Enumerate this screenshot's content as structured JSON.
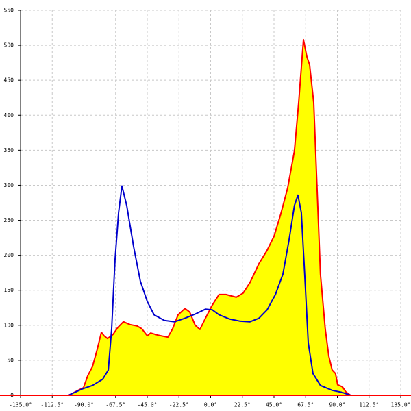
{
  "chart_data": {
    "type": "line",
    "xlim": [
      -135,
      135
    ],
    "ylim": [
      0,
      550
    ],
    "grid": true,
    "xticks": [
      {
        "value": -135,
        "label": "-135.0°"
      },
      {
        "value": -112.5,
        "label": "-112.5°"
      },
      {
        "value": -90,
        "label": "-90.0°"
      },
      {
        "value": -67.5,
        "label": "-67.5°"
      },
      {
        "value": -45,
        "label": "-45.0°"
      },
      {
        "value": -22.5,
        "label": "-22.5°"
      },
      {
        "value": 0,
        "label": "0.0°"
      },
      {
        "value": 22.5,
        "label": "22.5°"
      },
      {
        "value": 45,
        "label": "45.0°"
      },
      {
        "value": 67.5,
        "label": "67.5°"
      },
      {
        "value": 90,
        "label": "90.0°"
      },
      {
        "value": 112.5,
        "label": "112.5°"
      },
      {
        "value": 135,
        "label": "135.0°"
      }
    ],
    "yticks": [
      0,
      50,
      100,
      150,
      200,
      250,
      300,
      350,
      400,
      450,
      500,
      550
    ],
    "series": [
      {
        "color": "#ff0000",
        "fill_color": "#ffff00",
        "x": [
          -101,
          -96.1,
          -90.3,
          -87.3,
          -83.9,
          -80.5,
          -77.6,
          -75.7,
          -73.2,
          -69.3,
          -65.9,
          -62,
          -57.2,
          -52.3,
          -48.9,
          -45,
          -42.6,
          -37.7,
          -30.4,
          -27,
          -23.1,
          -18.3,
          -14.9,
          -11,
          -7.6,
          -3.7,
          1.2,
          6,
          10.9,
          18.2,
          23.1,
          27.9,
          34.3,
          40.1,
          45,
          49.8,
          54.7,
          59.5,
          62.5,
          65.9,
          68.3,
          70.3,
          73.2,
          75.1,
          78,
          81.4,
          83.9,
          86.3,
          88.7,
          90.2,
          93.6,
          96,
          99.4
        ],
        "values": [
          0,
          5,
          11,
          28,
          41,
          66,
          90,
          85,
          81,
          87,
          97,
          105,
          101,
          99,
          95,
          85,
          89,
          86,
          83,
          95,
          115,
          124,
          119,
          100,
          94,
          110,
          129,
          144,
          144,
          140,
          146,
          161,
          188,
          207,
          227,
          259,
          296,
          349,
          418,
          508,
          484,
          472,
          418,
          320,
          173,
          95,
          56,
          36,
          31,
          15,
          12,
          5,
          0
        ]
      },
      {
        "color": "#0000cc",
        "x": [
          -101,
          -91.2,
          -83.9,
          -76.6,
          -72.7,
          -70.3,
          -67.9,
          -65.4,
          -63,
          -59.6,
          -54.7,
          -49.9,
          -45,
          -40.2,
          -32.9,
          -25.6,
          -18.3,
          -11,
          -3.7,
          1.2,
          6,
          13.3,
          20.6,
          27.9,
          34.3,
          40.1,
          46,
          51.3,
          55.7,
          59.5,
          62,
          64.4,
          66.8,
          69.3,
          72.7,
          78,
          86.3,
          93.6,
          99.4
        ],
        "values": [
          0,
          9,
          14,
          23,
          36,
          95,
          193,
          261,
          299,
          271,
          212,
          163,
          134,
          115,
          107,
          105,
          110,
          116,
          123,
          122,
          115,
          109,
          106,
          105,
          110,
          122,
          144,
          173,
          222,
          271,
          286,
          261,
          173,
          75,
          31,
          14,
          7,
          4,
          0
        ]
      }
    ]
  }
}
